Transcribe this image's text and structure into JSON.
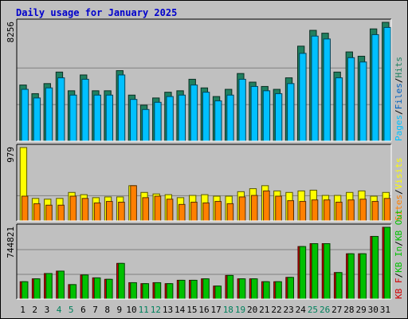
{
  "title": "Daily usage for January 2025",
  "colors": {
    "background": "#C0C0C0",
    "pages": "#00C0FF",
    "files": "#0060C0",
    "hits": "#208060",
    "visits": "#FFFF00",
    "sites": "#FF8000",
    "kb_in": "#00C000",
    "kb_out": "#00C000",
    "kb_f": "#D00000",
    "weekend_day": "#00805C",
    "weekday_day": "#000000"
  },
  "chart_data": [
    {
      "type": "bar",
      "name": "hits-files-pages",
      "title": "Daily usage for January 2025",
      "y_tick_label": "8256",
      "y_axis_labels": [
        "Pages",
        "Files",
        "Hits"
      ],
      "y_axis_separator": "/",
      "ylim": [
        0,
        8256
      ],
      "categories": [
        "1",
        "2",
        "3",
        "4",
        "5",
        "6",
        "7",
        "8",
        "9",
        "10",
        "11",
        "12",
        "13",
        "14",
        "15",
        "16",
        "17",
        "18",
        "19",
        "20",
        "21",
        "22",
        "23",
        "24",
        "25",
        "26",
        "27",
        "28",
        "29",
        "30",
        "31"
      ],
      "series": [
        {
          "name": "Hits",
          "values": [
            3900,
            3300,
            4000,
            4800,
            3500,
            4600,
            3500,
            3500,
            4900,
            3200,
            2500,
            3000,
            3400,
            3500,
            4300,
            3700,
            3100,
            3600,
            4700,
            4100,
            3800,
            3600,
            4400,
            6600,
            7700,
            7500,
            4800,
            6200,
            5900,
            7800,
            8256
          ]
        },
        {
          "name": "Pages",
          "values": [
            3600,
            3000,
            3700,
            4400,
            3200,
            4300,
            3200,
            3200,
            4600,
            2900,
            2200,
            2700,
            3100,
            3200,
            3900,
            3400,
            2800,
            3200,
            4300,
            3800,
            3500,
            3300,
            4000,
            6100,
            7300,
            7100,
            4400,
            5800,
            5500,
            7400,
            7900
          ]
        }
      ]
    },
    {
      "type": "bar",
      "name": "visits-sites",
      "y_tick_label": "979",
      "y_axis_labels": [
        "Sites",
        "Visits"
      ],
      "y_axis_separator": "/",
      "ylim": [
        0,
        979
      ],
      "categories": [
        "1",
        "2",
        "3",
        "4",
        "5",
        "6",
        "7",
        "8",
        "9",
        "10",
        "11",
        "12",
        "13",
        "14",
        "15",
        "16",
        "17",
        "18",
        "19",
        "20",
        "21",
        "22",
        "23",
        "24",
        "25",
        "26",
        "27",
        "28",
        "29",
        "30",
        "31"
      ],
      "series": [
        {
          "name": "Visits",
          "values": [
            979,
            300,
            290,
            300,
            380,
            350,
            310,
            320,
            320,
            470,
            380,
            360,
            350,
            310,
            340,
            350,
            330,
            330,
            390,
            430,
            470,
            400,
            380,
            400,
            410,
            340,
            340,
            380,
            400,
            330,
            380
          ]
        },
        {
          "name": "Sites",
          "values": [
            330,
            230,
            210,
            210,
            330,
            300,
            240,
            260,
            250,
            470,
            310,
            330,
            290,
            220,
            250,
            240,
            260,
            230,
            320,
            340,
            400,
            330,
            270,
            260,
            280,
            280,
            250,
            280,
            290,
            260,
            300
          ]
        }
      ]
    },
    {
      "type": "bar",
      "name": "kbf-kbin-kbout",
      "y_tick_label": "744821",
      "y_axis_labels": [
        "KB F",
        "KB In",
        "KB Out"
      ],
      "y_axis_separator": "/",
      "ylim": [
        0,
        744821
      ],
      "categories": [
        "1",
        "2",
        "3",
        "4",
        "5",
        "6",
        "7",
        "8",
        "9",
        "10",
        "11",
        "12",
        "13",
        "14",
        "15",
        "16",
        "17",
        "18",
        "19",
        "20",
        "21",
        "22",
        "23",
        "24",
        "25",
        "26",
        "27",
        "28",
        "29",
        "30",
        "31"
      ],
      "series": [
        {
          "name": "KB F",
          "values": [
            180000,
            210000,
            265000,
            290000,
            150000,
            250000,
            220000,
            205000,
            370000,
            170000,
            160000,
            170000,
            160000,
            195000,
            195000,
            210000,
            135000,
            245000,
            210000,
            210000,
            180000,
            180000,
            225000,
            545000,
            575000,
            575000,
            275000,
            470000,
            470000,
            650000,
            744821
          ]
        },
        {
          "name": "KB In",
          "values": [
            180000,
            210000,
            265000,
            290000,
            150000,
            250000,
            220000,
            205000,
            370000,
            170000,
            160000,
            170000,
            160000,
            195000,
            195000,
            210000,
            135000,
            245000,
            210000,
            210000,
            180000,
            180000,
            225000,
            545000,
            575000,
            575000,
            275000,
            470000,
            470000,
            650000,
            744821
          ]
        },
        {
          "name": "KB Out",
          "values": [
            180000,
            210000,
            265000,
            290000,
            150000,
            250000,
            220000,
            205000,
            370000,
            170000,
            160000,
            170000,
            160000,
            195000,
            195000,
            210000,
            135000,
            245000,
            210000,
            210000,
            180000,
            180000,
            225000,
            545000,
            575000,
            575000,
            275000,
            470000,
            470000,
            650000,
            744821
          ]
        }
      ]
    }
  ],
  "weekend_days": [
    4,
    5,
    11,
    12,
    18,
    19,
    25,
    26
  ]
}
